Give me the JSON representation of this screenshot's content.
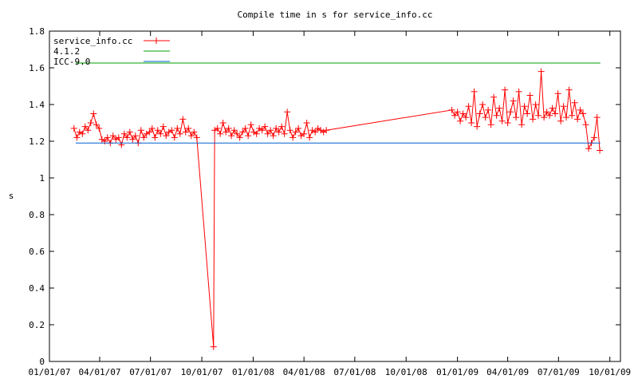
{
  "chart_data": {
    "type": "line",
    "title": "Compile time in s for service_info.cc",
    "xlabel": "",
    "ylabel": "s",
    "xlim": [
      "2007-01-01",
      "2009-10-20"
    ],
    "ylim": [
      0,
      1.8
    ],
    "grid": false,
    "legend_position": "top-left",
    "x_ticks": [
      {
        "date": "2007-01-01",
        "label": "01/01/07"
      },
      {
        "date": "2007-04-01",
        "label": "04/01/07"
      },
      {
        "date": "2007-07-01",
        "label": "07/01/07"
      },
      {
        "date": "2007-10-01",
        "label": "10/01/07"
      },
      {
        "date": "2008-01-01",
        "label": "01/01/08"
      },
      {
        "date": "2008-04-01",
        "label": "04/01/08"
      },
      {
        "date": "2008-07-01",
        "label": "07/01/08"
      },
      {
        "date": "2008-10-01",
        "label": "10/01/08"
      },
      {
        "date": "2009-01-01",
        "label": "01/01/09"
      },
      {
        "date": "2009-04-01",
        "label": "04/01/09"
      },
      {
        "date": "2009-07-01",
        "label": "07/01/09"
      },
      {
        "date": "2009-10-01",
        "label": "10/01/09"
      }
    ],
    "y_ticks": [
      {
        "value": 0,
        "label": "0"
      },
      {
        "value": 0.2,
        "label": "0.2"
      },
      {
        "value": 0.4,
        "label": "0.4"
      },
      {
        "value": 0.6,
        "label": "0.6"
      },
      {
        "value": 0.8,
        "label": "0.8"
      },
      {
        "value": 1.0,
        "label": "1"
      },
      {
        "value": 1.2,
        "label": "1.2"
      },
      {
        "value": 1.4,
        "label": "1.4"
      },
      {
        "value": 1.6,
        "label": "1.6"
      },
      {
        "value": 1.8,
        "label": "1.8"
      }
    ],
    "series": [
      {
        "name": "service_info.cc",
        "color": "#ff0000",
        "style": "linespoints",
        "segments": [
          {
            "start": "2007-02-14",
            "step_days": 5,
            "values": [
              1.27,
              1.22,
              1.25,
              1.24,
              1.28,
              1.26,
              1.3,
              1.35,
              1.29,
              1.27,
              1.21,
              1.2,
              1.22,
              1.19,
              1.23,
              1.21,
              1.22,
              1.18,
              1.24,
              1.22,
              1.25,
              1.21,
              1.23,
              1.19,
              1.26,
              1.22,
              1.24,
              1.25,
              1.27,
              1.22,
              1.26,
              1.24,
              1.28,
              1.23,
              1.25,
              1.26,
              1.22,
              1.27,
              1.24,
              1.32,
              1.25,
              1.27,
              1.23,
              1.25,
              1.22
            ]
          },
          {
            "start": "2007-10-22",
            "step_days": 5,
            "values": [
              0.08
            ]
          },
          {
            "start": "2007-10-24",
            "step_days": 5,
            "values": [
              1.26,
              1.27,
              1.24,
              1.3,
              1.25,
              1.27,
              1.23,
              1.26,
              1.24,
              1.22,
              1.25,
              1.27,
              1.23,
              1.29,
              1.25,
              1.24,
              1.27,
              1.26,
              1.28,
              1.24,
              1.26,
              1.23,
              1.27,
              1.25,
              1.28,
              1.24,
              1.36,
              1.26,
              1.22,
              1.25,
              1.27,
              1.23,
              1.24,
              1.3,
              1.22,
              1.26,
              1.25,
              1.27,
              1.26,
              1.25,
              1.26
            ]
          },
          {
            "start": "2008-12-22",
            "step_days": 5,
            "values": [
              1.37,
              1.34,
              1.36,
              1.31,
              1.35,
              1.33,
              1.39,
              1.3,
              1.47,
              1.28,
              1.35,
              1.4,
              1.33,
              1.37,
              1.29,
              1.44,
              1.34,
              1.38,
              1.31,
              1.48,
              1.3,
              1.36,
              1.42,
              1.33,
              1.47,
              1.29,
              1.39,
              1.35,
              1.45,
              1.32,
              1.4,
              1.34,
              1.58,
              1.33,
              1.36,
              1.34,
              1.38,
              1.35,
              1.46,
              1.31,
              1.39,
              1.33,
              1.48,
              1.34,
              1.41,
              1.32,
              1.37,
              1.35,
              1.29,
              1.16,
              1.19,
              1.22,
              1.33,
              1.15
            ]
          }
        ]
      },
      {
        "name": "4.1.2",
        "color": "#00a000",
        "style": "lines",
        "x": [
          "2007-02-17",
          "2009-09-14"
        ],
        "y": [
          1.626,
          1.626
        ]
      },
      {
        "name": "ICC-9.0",
        "color": "#0060d0",
        "style": "lines",
        "x": [
          "2007-02-17",
          "2009-09-14"
        ],
        "y": [
          1.19,
          1.19
        ]
      }
    ]
  }
}
